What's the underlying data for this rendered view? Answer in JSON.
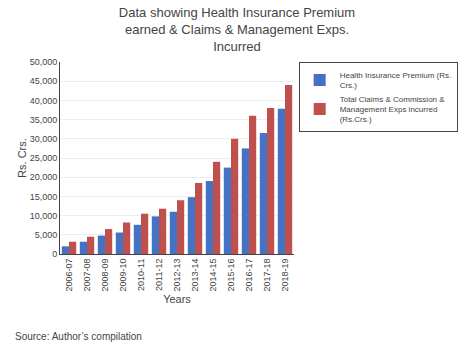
{
  "chart_data": {
    "type": "bar",
    "title": "Data showing Health Insurance Premium\nearned & Claims & Management Exps.\nIncurred",
    "x_label": "Years",
    "y_label": "Rs. Crs.",
    "annotations": [
      "Source: Author’s compilation"
    ],
    "categories": [
      "2006-07",
      "2007-08",
      "2008-09",
      "2009-10",
      "2010-11",
      "2011-12",
      "2012-13",
      "2013-14",
      "2014-15",
      "2015-16",
      "2016-17",
      "2017-18",
      "2018-19"
    ],
    "series": [
      {
        "name": "Health Insurance Premium (Rs.\nCrs.)",
        "color": "#4472C4",
        "values": [
          2000,
          3200,
          4800,
          5600,
          7600,
          9800,
          11000,
          14800,
          19000,
          22500,
          27500,
          31500,
          37800
        ]
      },
      {
        "name": "Total Claims & Commission &\nManagement Exps incurred\n(Rs.Crs.)",
        "color": "#C0504D",
        "values": [
          3200,
          4500,
          6500,
          8200,
          10500,
          11800,
          14000,
          18500,
          24000,
          30000,
          36000,
          38000,
          44000
        ]
      }
    ],
    "ylim": [
      0,
      50000
    ],
    "yticks": [
      0,
      {
        "value": 5000,
        "label": "5,000"
      },
      {
        "value": 10000,
        "label": "10,000"
      },
      {
        "value": 15000,
        "label": "15,000"
      },
      {
        "value": 20000,
        "label": "20,000"
      },
      {
        "value": 25000,
        "label": "25,000"
      },
      {
        "value": 30000,
        "label": "30,000"
      },
      {
        "value": 35000,
        "label": "35,000"
      },
      {
        "value": 40000,
        "label": "40,000"
      },
      {
        "value": 45000,
        "label": "45,000"
      },
      {
        "value": 50000,
        "label": "50,000"
      }
    ],
    "grid": true,
    "legend": "right"
  }
}
